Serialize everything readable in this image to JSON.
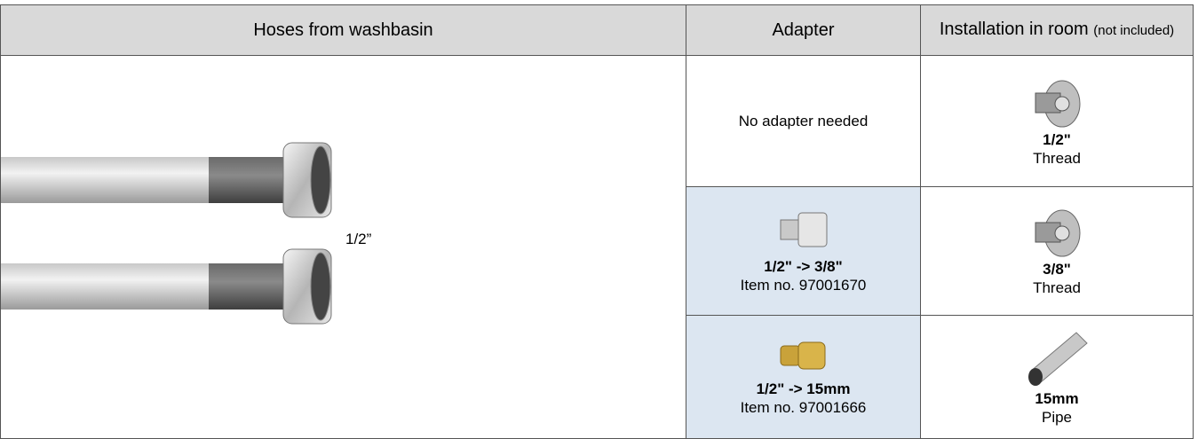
{
  "header": {
    "hoses": "Hoses from washbasin",
    "adapter": "Adapter",
    "installation": "Installation in room",
    "installation_note": "(not included)"
  },
  "hose_label": "1/2”",
  "rows": [
    {
      "adapter_text": "No adapter needed",
      "install_size": "1/2\"",
      "install_type": "Thread"
    },
    {
      "adapter_title": "1/2\" -> 3/8\"",
      "adapter_item": "Item no. 97001670",
      "install_size": "3/8\"",
      "install_type": "Thread"
    },
    {
      "adapter_title": "1/2\" -> 15mm",
      "adapter_item": "Item no. 97001666",
      "install_size": "15mm",
      "install_type": "Pipe"
    }
  ]
}
